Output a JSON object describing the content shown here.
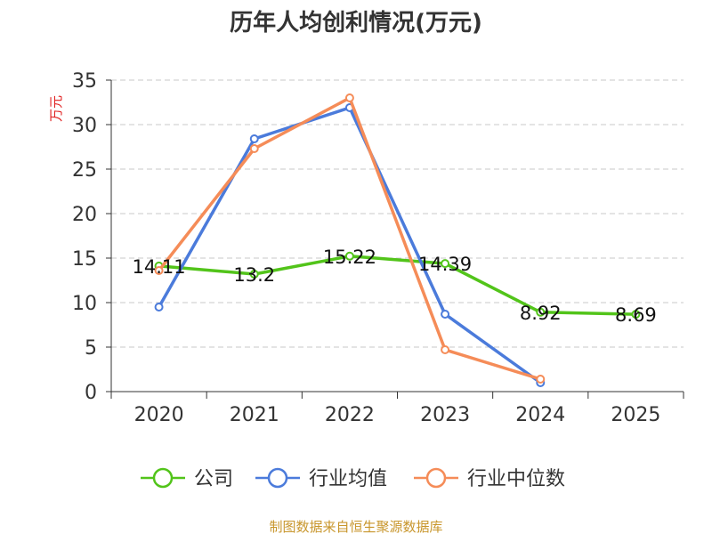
{
  "chart_data": {
    "type": "line",
    "title": "历年人均创利情况(万元)",
    "ylabel": "万元",
    "xlabel": "",
    "categories": [
      "2020",
      "2021",
      "2022",
      "2023",
      "2024",
      "2025"
    ],
    "yticks": [
      0,
      5,
      10,
      15,
      20,
      25,
      30,
      35
    ],
    "ylim": [
      0,
      35
    ],
    "grid": true,
    "legend_position": "bottom",
    "series": [
      {
        "name": "公司",
        "color": "#52c41a",
        "values": [
          14.11,
          13.2,
          15.22,
          14.39,
          8.92,
          8.69
        ],
        "labels": [
          "14.11",
          "13.2",
          "15.22",
          "14.39",
          "8.92",
          "8.69"
        ]
      },
      {
        "name": "行业均值",
        "color": "#4b7bdb",
        "values": [
          9.5,
          28.4,
          31.9,
          8.7,
          1.0,
          null
        ]
      },
      {
        "name": "行业中位数",
        "color": "#f58c58",
        "values": [
          13.6,
          27.3,
          33.0,
          4.7,
          1.4,
          null
        ]
      }
    ]
  },
  "source": "制图数据来自恒生聚源数据库"
}
